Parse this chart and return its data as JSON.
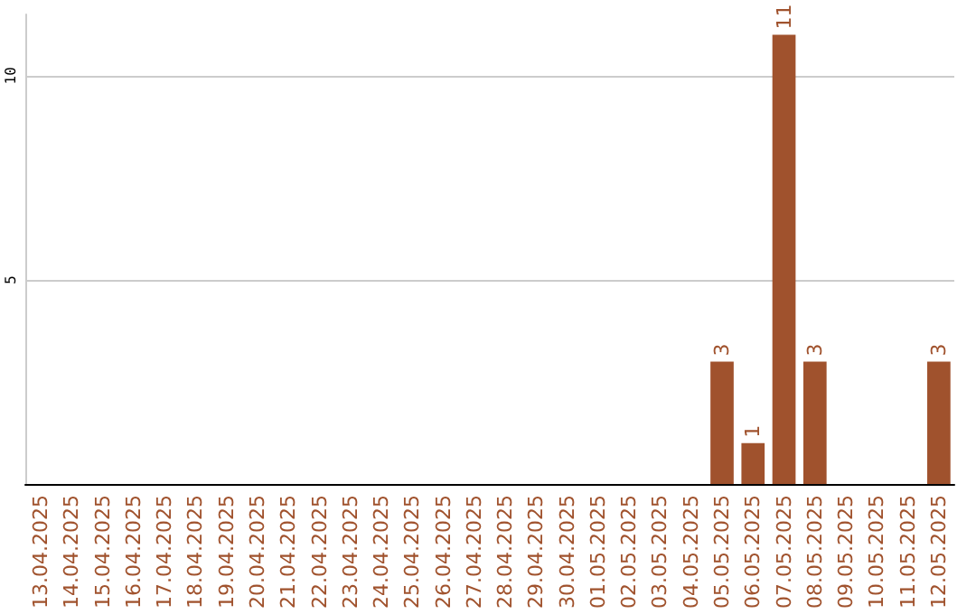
{
  "chart_data": {
    "type": "bar",
    "categories": [
      "13.04.2025",
      "14.04.2025",
      "15.04.2025",
      "16.04.2025",
      "17.04.2025",
      "18.04.2025",
      "19.04.2025",
      "20.04.2025",
      "21.04.2025",
      "22.04.2025",
      "23.04.2025",
      "24.04.2025",
      "25.04.2025",
      "26.04.2025",
      "27.04.2025",
      "28.04.2025",
      "29.04.2025",
      "30.04.2025",
      "01.05.2025",
      "02.05.2025",
      "03.05.2025",
      "04.05.2025",
      "05.05.2025",
      "06.05.2025",
      "07.05.2025",
      "08.05.2025",
      "09.05.2025",
      "10.05.2025",
      "11.05.2025",
      "12.05.2025"
    ],
    "values": [
      0,
      0,
      0,
      0,
      0,
      0,
      0,
      0,
      0,
      0,
      0,
      0,
      0,
      0,
      0,
      0,
      0,
      0,
      0,
      0,
      0,
      0,
      3,
      1,
      11,
      3,
      0,
      0,
      0,
      3
    ],
    "value_labels": [
      null,
      null,
      null,
      null,
      null,
      null,
      null,
      null,
      null,
      null,
      null,
      null,
      null,
      null,
      null,
      null,
      null,
      null,
      null,
      null,
      null,
      null,
      "3",
      "1",
      "11",
      "3",
      null,
      null,
      null,
      "3"
    ],
    "color": "#a0522d",
    "ylim": [
      0,
      11.5
    ],
    "yticks": [
      5,
      10
    ],
    "grid": "y"
  }
}
